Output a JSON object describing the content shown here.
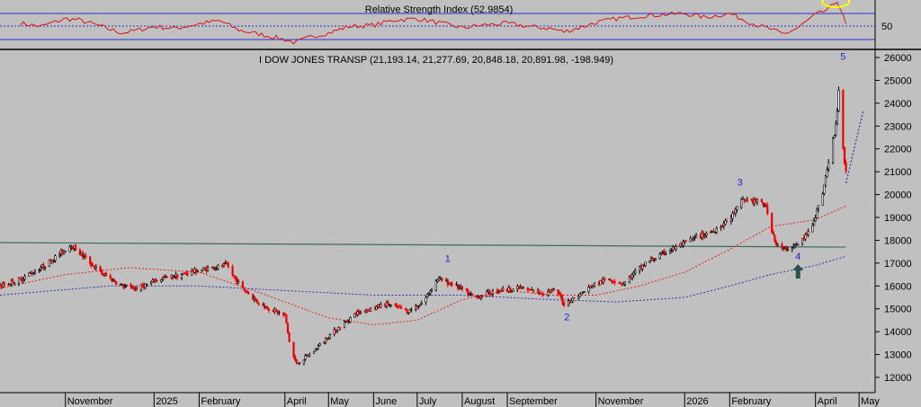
{
  "chart_data": [
    {
      "type": "line",
      "title": "Relative Strength Index (52.9854)",
      "ylim": [
        0,
        100
      ],
      "levels": [
        70,
        50,
        30
      ],
      "tick_labels": [
        "50"
      ],
      "current_value": 52.9854,
      "x": [
        "2024-10-01",
        "2024-10-15",
        "2024-11-01",
        "2024-11-10",
        "2024-11-20",
        "2024-12-01",
        "2024-12-10",
        "2024-12-20",
        "2025-01-01",
        "2025-01-15",
        "2025-02-01",
        "2025-02-15",
        "2025-03-01",
        "2025-03-15",
        "2025-04-01",
        "2025-04-08",
        "2025-04-20",
        "2025-05-01",
        "2025-05-15",
        "2025-06-01",
        "2025-06-15",
        "2025-07-01",
        "2025-07-15",
        "2025-08-01",
        "2025-08-15",
        "2025-09-01",
        "2025-09-15",
        "2025-10-01",
        "2025-10-10",
        "2025-10-20",
        "2025-11-01",
        "2025-11-15",
        "2025-12-01",
        "2025-12-15",
        "2026-01-01",
        "2026-01-15",
        "2026-02-01",
        "2026-02-10",
        "2026-02-20",
        "2026-03-01",
        "2026-03-10",
        "2026-03-20",
        "2026-04-01",
        "2026-04-10",
        "2026-04-16",
        "2026-04-22"
      ],
      "values": [
        55,
        50,
        62,
        60,
        54,
        46,
        40,
        44,
        50,
        47,
        54,
        59,
        44,
        38,
        30,
        25,
        35,
        40,
        50,
        52,
        60,
        62,
        56,
        48,
        52,
        55,
        50,
        47,
        42,
        48,
        56,
        62,
        66,
        68,
        70,
        64,
        70,
        61,
        52,
        46,
        38,
        48,
        68,
        76,
        90,
        53
      ],
      "annotations": [
        {
          "type": "ellipse",
          "x": "2026-04-15",
          "y": 88,
          "color": "#ffff00"
        }
      ]
    },
    {
      "type": "candlestick",
      "title": "I DOW JONES TRANSP (21,193.14, 21,277.69, 20,848.18, 20,891.98, -198.949)",
      "ylim": [
        12000,
        26000
      ],
      "y_ticks": [
        12000,
        13000,
        14000,
        15000,
        16000,
        17000,
        18000,
        19000,
        20000,
        21000,
        22000,
        23000,
        24000,
        25000,
        26000
      ],
      "x_labels": [
        "November",
        "2025",
        "February",
        "April",
        "May",
        "June",
        "July",
        "August",
        "September",
        "November",
        "2026",
        "February",
        "April",
        "May"
      ],
      "x_label_dates": [
        "2024-11-01",
        "2025-01-01",
        "2025-02-01",
        "2025-04-01",
        "2025-05-01",
        "2025-06-01",
        "2025-07-01",
        "2025-08-01",
        "2025-09-01",
        "2025-11-01",
        "2026-01-01",
        "2026-02-01",
        "2026-04-01",
        "2026-05-01"
      ],
      "price_path": {
        "x": [
          "2024-09-17",
          "2024-10-01",
          "2024-10-20",
          "2024-11-05",
          "2024-11-25",
          "2024-12-10",
          "2024-12-20",
          "2025-01-05",
          "2025-01-20",
          "2025-02-01",
          "2025-02-20",
          "2025-03-01",
          "2025-03-15",
          "2025-04-01",
          "2025-04-05",
          "2025-04-09",
          "2025-04-20",
          "2025-05-01",
          "2025-05-20",
          "2025-06-10",
          "2025-06-25",
          "2025-07-05",
          "2025-07-15",
          "2025-07-25",
          "2025-08-10",
          "2025-08-25",
          "2025-09-10",
          "2025-09-25",
          "2025-10-05",
          "2025-10-10",
          "2025-10-20",
          "2025-11-01",
          "2025-11-10",
          "2025-11-20",
          "2025-12-05",
          "2025-12-20",
          "2026-01-05",
          "2026-01-20",
          "2026-02-01",
          "2026-02-10",
          "2026-02-25",
          "2026-03-05",
          "2026-03-10",
          "2026-03-20",
          "2026-03-28",
          "2026-04-05",
          "2026-04-10",
          "2026-04-15",
          "2026-04-17",
          "2026-04-20",
          "2026-04-22"
        ],
        "close": [
          16000,
          16300,
          17000,
          17800,
          16600,
          16000,
          15900,
          16300,
          16500,
          16700,
          16900,
          16000,
          15200,
          14700,
          13200,
          12600,
          13100,
          13800,
          14800,
          15200,
          14900,
          15300,
          16300,
          16100,
          15500,
          15800,
          15900,
          15700,
          15800,
          15200,
          15600,
          16100,
          16300,
          16100,
          17000,
          17500,
          18000,
          18400,
          18900,
          19800,
          19600,
          17800,
          17600,
          17800,
          18400,
          19800,
          21400,
          23000,
          24600,
          22000,
          20892
        ]
      },
      "overlays": [
        {
          "name": "Moving average (red, dotted)",
          "color": "#dd2222",
          "x": [
            "2024-09-17",
            "2024-11-01",
            "2024-12-15",
            "2025-02-01",
            "2025-03-15",
            "2025-05-01",
            "2025-06-01",
            "2025-07-01",
            "2025-08-01",
            "2025-09-01",
            "2025-10-01",
            "2025-11-01",
            "2025-12-01",
            "2026-01-01",
            "2026-02-01",
            "2026-03-01",
            "2026-04-01",
            "2026-04-22"
          ],
          "y": [
            15900,
            16500,
            16800,
            16600,
            15700,
            14600,
            14300,
            14500,
            15400,
            15800,
            15600,
            15600,
            16000,
            16600,
            17600,
            18600,
            18900,
            19500
          ]
        },
        {
          "name": "Moving average (blue, dotted)",
          "color": "#3333aa",
          "x": [
            "2024-09-17",
            "2024-12-01",
            "2025-02-01",
            "2025-04-01",
            "2025-06-01",
            "2025-08-01",
            "2025-10-01",
            "2025-11-15",
            "2026-01-01",
            "2026-02-01",
            "2026-03-01",
            "2026-04-01",
            "2026-04-22"
          ],
          "y": [
            15600,
            16000,
            16000,
            15800,
            15600,
            15600,
            15400,
            15300,
            15500,
            16000,
            16500,
            16900,
            17300
          ]
        }
      ],
      "trendlines": [
        {
          "color": "#3d6b5e",
          "from": [
            "2024-09-17",
            17900
          ],
          "to": [
            "2026-04-22",
            17700
          ]
        },
        {
          "color": "#3333aa",
          "dashed": true,
          "from": [
            "2026-04-22",
            20500
          ],
          "to": [
            "2026-05-04",
            23700
          ]
        }
      ],
      "wave_labels": [
        {
          "text": "1",
          "x": "2025-07-22",
          "y": 17050
        },
        {
          "text": "2",
          "x": "2025-10-12",
          "y": 14500
        },
        {
          "text": "3",
          "x": "2026-02-08",
          "y": 20400
        },
        {
          "text": "4",
          "x": "2026-03-20",
          "y": 17150
        },
        {
          "text": "5",
          "x": "2026-04-20",
          "y": 25900
        }
      ],
      "arrow": {
        "x": "2026-03-20",
        "y": 16600,
        "color": "#2e4f4f",
        "direction": "up"
      }
    }
  ]
}
